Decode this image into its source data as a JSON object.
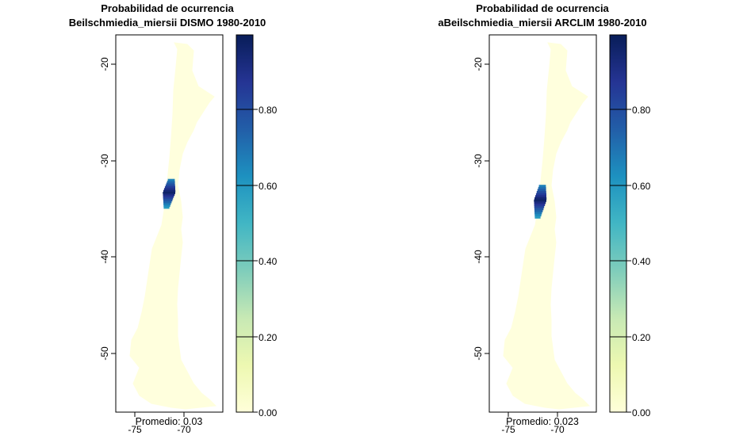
{
  "palette": {
    "background": "#ffffff",
    "land_low": "#ffffdd",
    "colorbar_stops": [
      "#ffffd9",
      "#edf8b1",
      "#c7e9b4",
      "#7fcdbb",
      "#41b6c4",
      "#1d91c0",
      "#225ea8",
      "#253494",
      "#081d58"
    ]
  },
  "chart_data": [
    {
      "type": "heatmap",
      "title": "Probabilidad de ocurrencia",
      "subtitle": "Beilschmiedia_miersii DISMO 1980-2010",
      "xlabel": "",
      "ylabel": "",
      "x_ticks": [
        -75,
        -70
      ],
      "y_ticks": [
        -20,
        -30,
        -40,
        -50
      ],
      "xlim": [
        -77.2,
        -66.2
      ],
      "ylim": [
        -56,
        -17.5
      ],
      "color_scale": {
        "min": 0,
        "max": 0.98,
        "ticks": [
          "0.00",
          "0.20",
          "0.40",
          "0.60",
          "0.80"
        ]
      },
      "mean_label": "Promedio: 0.03",
      "hotspot": {
        "lat_range": [
          -35.2,
          -32.2
        ],
        "peak_value": 0.98
      }
    },
    {
      "type": "heatmap",
      "title": "Probabilidad de ocurrencia",
      "subtitle": "aBeilschmiedia_miersii ARCLIM 1980-2010",
      "xlabel": "",
      "ylabel": "",
      "x_ticks": [
        -75,
        -70
      ],
      "y_ticks": [
        -20,
        -30,
        -40,
        -50
      ],
      "xlim": [
        -77.2,
        -66.2
      ],
      "ylim": [
        -56,
        -17.5
      ],
      "color_scale": {
        "min": 0,
        "max": 0.98,
        "ticks": [
          "0.00",
          "0.20",
          "0.40",
          "0.60",
          "0.80"
        ]
      },
      "mean_label": "Promedio: 0.023",
      "hotspot": {
        "lat_range": [
          -36.2,
          -32.8
        ],
        "peak_value": 0.98
      }
    }
  ]
}
